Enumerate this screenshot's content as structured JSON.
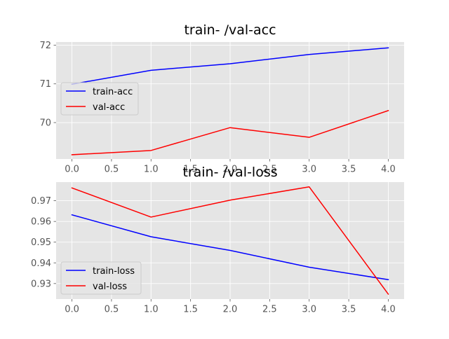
{
  "chart_data": [
    {
      "type": "line",
      "title": "train- /val-acc",
      "xlabel": "",
      "ylabel": "",
      "x": [
        0,
        1,
        2,
        3,
        4
      ],
      "xlim": [
        -0.2,
        4.2
      ],
      "ylim": [
        69.06,
        72.08
      ],
      "xticks": [
        "0.0",
        "0.5",
        "1.0",
        "1.5",
        "2.0",
        "2.5",
        "3.0",
        "3.5",
        "4.0"
      ],
      "xtick_values": [
        0,
        0.5,
        1,
        1.5,
        2,
        2.5,
        3,
        3.5,
        4
      ],
      "yticks": [
        "70",
        "71",
        "72"
      ],
      "ytick_values": [
        70,
        71,
        72
      ],
      "grid": true,
      "legend_position": "center-left",
      "series": [
        {
          "name": "train-acc",
          "color": "#0000ff",
          "values": [
            70.99,
            71.35,
            71.52,
            71.76,
            71.93
          ]
        },
        {
          "name": "val-acc",
          "color": "#ff0000",
          "values": [
            69.17,
            69.28,
            69.87,
            69.62,
            70.31
          ]
        }
      ]
    },
    {
      "type": "line",
      "title": "train- /val-loss",
      "xlabel": "",
      "ylabel": "",
      "x": [
        0,
        1,
        2,
        3,
        4
      ],
      "xlim": [
        -0.2,
        4.2
      ],
      "ylim": [
        0.9225,
        0.979
      ],
      "xticks": [
        "0.0",
        "0.5",
        "1.0",
        "1.5",
        "2.0",
        "2.5",
        "3.0",
        "3.5",
        "4.0"
      ],
      "xtick_values": [
        0,
        0.5,
        1,
        1.5,
        2,
        2.5,
        3,
        3.5,
        4
      ],
      "yticks": [
        "0.93",
        "0.94",
        "0.95",
        "0.96",
        "0.97"
      ],
      "ytick_values": [
        0.93,
        0.94,
        0.95,
        0.96,
        0.97
      ],
      "grid": true,
      "legend_position": "lower-left",
      "series": [
        {
          "name": "train-loss",
          "color": "#0000ff",
          "values": [
            0.9632,
            0.9526,
            0.946,
            0.9379,
            0.9319
          ]
        },
        {
          "name": "val-loss",
          "color": "#ff0000",
          "values": [
            0.9762,
            0.9621,
            0.9703,
            0.9767,
            0.9249
          ]
        }
      ]
    }
  ],
  "theme": {
    "axes_bg": "#e5e5e5",
    "grid_color": "#ffffff",
    "tick_color": "#555555",
    "title_color": "#000000",
    "legend_bg": "#e5e5e5",
    "legend_border": "#cccccc"
  }
}
